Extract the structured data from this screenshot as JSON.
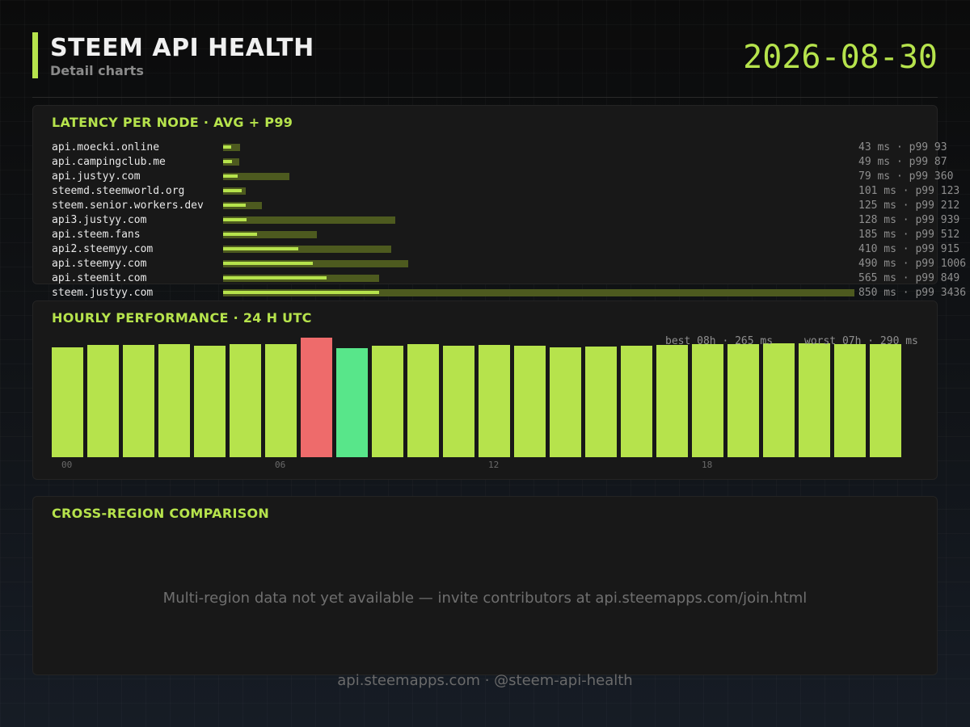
{
  "header": {
    "title": "STEEM API HEALTH",
    "subtitle": "Detail charts",
    "date": "2026-08-30"
  },
  "colors": {
    "accent": "#b6e34c",
    "track": "#4d5a1f",
    "best": "#58e68a",
    "worst": "#ee6b6b"
  },
  "latency": {
    "title": "LATENCY PER NODE  ·  AVG + P99"
  },
  "hourly": {
    "title": "HOURLY PERFORMANCE  ·  24 H UTC",
    "best_label": "best 08h · 265 ms",
    "worst_label": "worst 07h · 290 ms"
  },
  "region": {
    "title": "CROSS-REGION COMPARISON",
    "message": "Multi-region data not yet available — invite contributors at api.steemapps.com/join.html"
  },
  "footer": {
    "text": "api.steemapps.com  ·  @steem-api-health"
  },
  "chart_data": [
    {
      "type": "bar",
      "orientation": "horizontal",
      "categories": [
        "api.moecki.online",
        "api.campingclub.me",
        "api.justyy.com",
        "steemd.steemworld.org",
        "steem.senior.workers.dev",
        "api3.justyy.com",
        "api.steem.fans",
        "api2.steemyy.com",
        "api.steemyy.com",
        "api.steemit.com",
        "steem.justyy.com"
      ],
      "series": [
        {
          "name": "avg",
          "values": [
            43,
            49,
            79,
            101,
            125,
            128,
            185,
            410,
            490,
            565,
            850
          ]
        },
        {
          "name": "p99",
          "values": [
            93,
            87,
            360,
            123,
            212,
            939,
            512,
            915,
            1006,
            849,
            3436
          ]
        }
      ],
      "labels": [
        "43 ms  · p99 93",
        "49 ms  · p99 87",
        "79 ms  · p99 360",
        "101 ms  · p99 123",
        "125 ms  · p99 212",
        "128 ms  · p99 939",
        "185 ms  · p99 512",
        "410 ms  · p99 915",
        "490 ms  · p99 1006",
        "565 ms  · p99 849",
        "850 ms  · p99 3436"
      ],
      "xlim": [
        0,
        3436
      ]
    },
    {
      "type": "bar",
      "categories": [
        "00",
        "01",
        "02",
        "03",
        "04",
        "05",
        "06",
        "07",
        "08",
        "09",
        "10",
        "11",
        "12",
        "13",
        "14",
        "15",
        "16",
        "17",
        "18",
        "19",
        "20",
        "21",
        "22",
        "23"
      ],
      "tick_labels": [
        "00",
        "06",
        "12",
        "18"
      ],
      "values": [
        266,
        273,
        272,
        274,
        271,
        274,
        274,
        290,
        265,
        270,
        275,
        271,
        272,
        271,
        267,
        269,
        271,
        272,
        274,
        275,
        276,
        276,
        275,
        274
      ],
      "best_index": 8,
      "worst_index": 7,
      "ylim": [
        0,
        290
      ]
    }
  ]
}
